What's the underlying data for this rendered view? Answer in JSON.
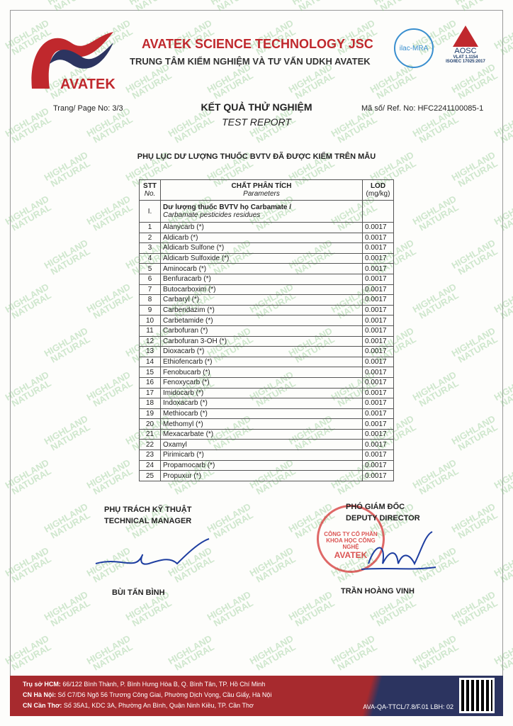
{
  "watermark": "HIGHLAND NATURAL",
  "header": {
    "logo_text": "AVATEK",
    "company": "AVATEK SCIENCE TECHNOLOGY JSC",
    "center": "TRUNG TÂM KIỂM NGHIỆM VÀ TƯ VẤN UDKH AVATEK",
    "ilac": "ilac-MRA",
    "aosc": "AOSC",
    "vlat": "VLAT 1.1154",
    "iso": "ISO/IEC 17025:2017"
  },
  "page_no": "Trang/ Page No: 3/3",
  "ref_no": "Mã số/ Ref. No: HFC2241100085-1",
  "title": "KẾT QUẢ THỬ NGHIỆM",
  "subtitle": "TEST REPORT",
  "appendix": "PHỤ LỤC DƯ LƯỢNG THUỐC BVTV ĐÃ ĐƯỢC KIỂM TRÊN MẪU",
  "table": {
    "headers": {
      "stt": "STT",
      "stt_en": "No.",
      "param": "CHẤT PHÂN TÍCH",
      "param_en": "Parameters",
      "lod": "LOD",
      "lod_unit": "(mg/kg)"
    },
    "group": {
      "no": "I.",
      "vi": "Dư lượng thuốc BVTV họ Carbamate /",
      "en": "Carbamate pesticides residues"
    },
    "rows": [
      [
        "1",
        "Alanycarb (*)",
        "0.0017"
      ],
      [
        "2",
        "Aldicarb (*)",
        "0.0017"
      ],
      [
        "3",
        "Aldicarb Sulfone (*)",
        "0.0017"
      ],
      [
        "4",
        "Aldicarb Sulfoxide (*)",
        "0.0017"
      ],
      [
        "5",
        "Aminocarb (*)",
        "0.0017"
      ],
      [
        "6",
        "Benfuracarb (*)",
        "0.0017"
      ],
      [
        "7",
        "Butocarboxim (*)",
        "0.0017"
      ],
      [
        "8",
        "Carbaryl (*)",
        "0.0017"
      ],
      [
        "9",
        "Carbendazim (*)",
        "0.0017"
      ],
      [
        "10",
        "Carbetamide (*)",
        "0.0017"
      ],
      [
        "11",
        "Carbofuran (*)",
        "0.0017"
      ],
      [
        "12",
        "Carbofuran 3-OH (*)",
        "0.0017"
      ],
      [
        "13",
        "Dioxacarb (*)",
        "0.0017"
      ],
      [
        "14",
        "Ethiofencarb (*)",
        "0.0017"
      ],
      [
        "15",
        "Fenobucarb (*)",
        "0.0017"
      ],
      [
        "16",
        "Fenoxycarb (*)",
        "0.0017"
      ],
      [
        "17",
        "Imidocarb (*)",
        "0.0017"
      ],
      [
        "18",
        "Indoxacarb (*)",
        "0.0017"
      ],
      [
        "19",
        "Methiocarb (*)",
        "0.0017"
      ],
      [
        "20",
        "Methomyl (*)",
        "0.0017"
      ],
      [
        "21",
        "Mexacarbate (*)",
        "0.0017"
      ],
      [
        "22",
        "Oxamyl",
        "0.0017"
      ],
      [
        "23",
        "Pirimicarb (*)",
        "0.0017"
      ],
      [
        "24",
        "Propamocarb (*)",
        "0.0017"
      ],
      [
        "25",
        "Propuxur (*)",
        "0.0017"
      ]
    ]
  },
  "signatures": {
    "left_title": "PHỤ TRÁCH KỸ THUẬT",
    "left_title_en": "TECHNICAL MANAGER",
    "left_name": "BÙI TẤN BÌNH",
    "right_title": "PHÓ GIÁM ĐỐC",
    "right_title_en": "DEPUTY DIRECTOR",
    "right_name": "TRẦN HOÀNG VINH",
    "stamp_line1": "CÔNG TY CỔ PHẦN",
    "stamp_line2": "KHOA HỌC CÔNG NGHỆ",
    "stamp_name": "AVATEK"
  },
  "footer": {
    "hcm_label": "Trụ sở HCM:",
    "hcm": " 66/122 Bình Thành, P. Bình Hưng Hòa B, Q. Bình Tân, TP. Hồ Chí Minh",
    "hn_label": "CN Hà Nội:",
    "hn": " Số C7/D6 Ngõ 56 Trương Công Giai, Phường Dịch Vọng, Cầu Giấy, Hà Nội",
    "ct_label": "CN Cần Thơ:",
    "ct": " Số 35A1, KDC 3A, Phường An Bình, Quận Ninh Kiều, TP. Cần Thơ",
    "code": "AVA-QA-TTCL/7.8/F.01 LBH: 02"
  },
  "colors": {
    "brand_red": "#c0282d",
    "navy": "#2c3460"
  }
}
